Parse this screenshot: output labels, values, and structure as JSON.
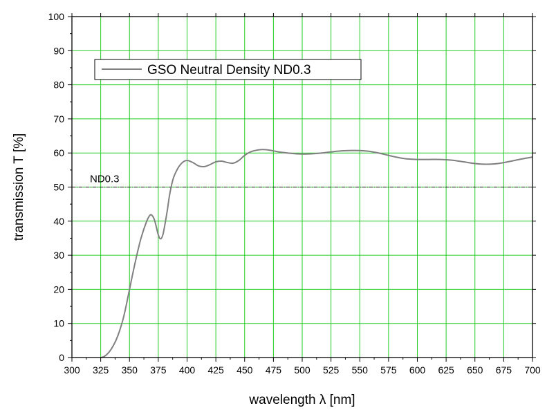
{
  "chart_data": {
    "type": "line",
    "title": "",
    "xlabel": "wavelength λ [nm]",
    "ylabel": "transmission T [%]",
    "xlim": [
      300,
      700
    ],
    "ylim": [
      0,
      100
    ],
    "xticks": [
      300,
      325,
      350,
      375,
      400,
      425,
      450,
      475,
      500,
      525,
      550,
      575,
      600,
      625,
      650,
      675,
      700
    ],
    "yticks": [
      0,
      10,
      20,
      30,
      40,
      50,
      60,
      70,
      80,
      90,
      100
    ],
    "grid": true,
    "legend_position": "top-left",
    "colors": {
      "grid": "#22cc22",
      "series": "#808080",
      "reference": "#000000"
    },
    "series": [
      {
        "name": "GSO Neutral Density ND0.3",
        "x": [
          325,
          328,
          332,
          336,
          340,
          345,
          350,
          355,
          360,
          365,
          368,
          370,
          372,
          375,
          377,
          379,
          381,
          383,
          385,
          388,
          392,
          396,
          400,
          405,
          410,
          415,
          420,
          425,
          430,
          435,
          440,
          445,
          450,
          455,
          460,
          465,
          470,
          475,
          480,
          490,
          500,
          510,
          520,
          530,
          540,
          550,
          560,
          570,
          580,
          590,
          600,
          610,
          620,
          630,
          640,
          650,
          660,
          670,
          680,
          690,
          700
        ],
        "y": [
          0,
          0.3,
          1.5,
          3.5,
          6.5,
          12,
          20,
          28,
          35,
          40,
          41.8,
          41.5,
          40,
          36,
          34.8,
          36,
          39.5,
          43.5,
          48,
          52.5,
          55.5,
          57.2,
          57.8,
          57.2,
          56.2,
          56,
          56.6,
          57.4,
          57.6,
          57.2,
          57,
          57.8,
          59.3,
          60.3,
          60.8,
          61,
          60.9,
          60.6,
          60.3,
          59.9,
          59.7,
          59.8,
          60.1,
          60.5,
          60.7,
          60.7,
          60.4,
          59.7,
          58.9,
          58.3,
          58.1,
          58.1,
          58.1,
          57.9,
          57.4,
          56.9,
          56.7,
          56.9,
          57.5,
          58.2,
          58.8
        ]
      }
    ],
    "reference_line": {
      "y": 50,
      "label": "ND0.3"
    }
  }
}
